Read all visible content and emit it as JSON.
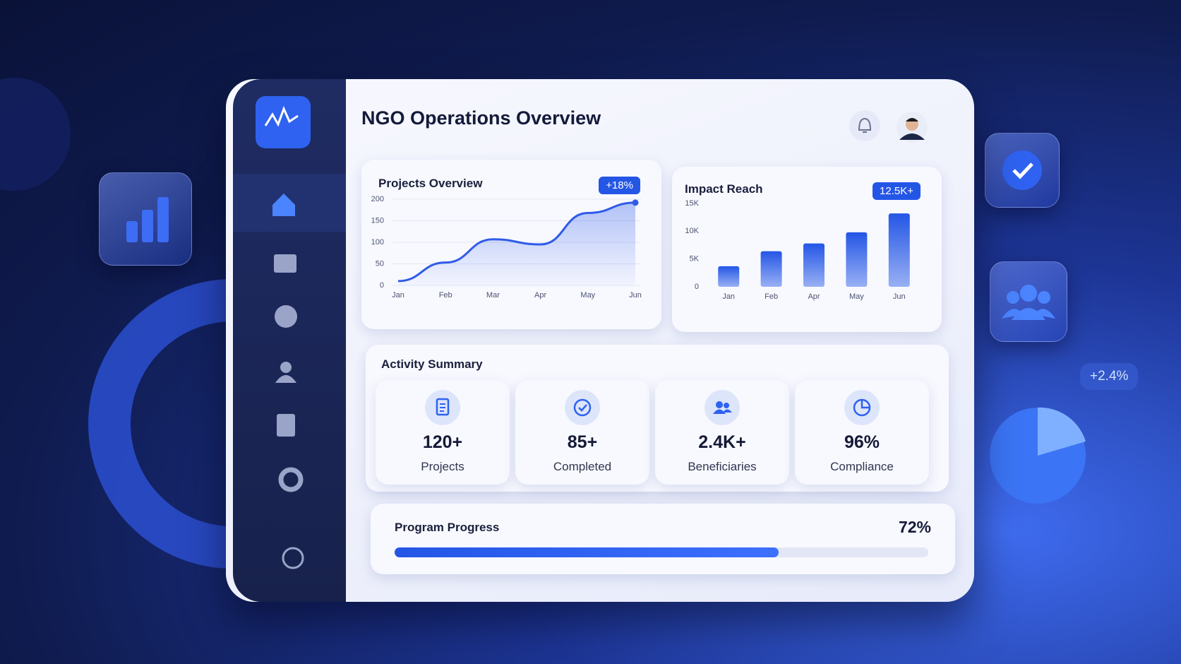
{
  "header": {
    "title": "NGO Operations Overview"
  },
  "chart_data": [
    {
      "type": "line",
      "title": "Projects Overview",
      "annotation": "+18%",
      "categories": [
        "Jan",
        "Feb",
        "Mar",
        "Apr",
        "May",
        "Jun"
      ],
      "values": [
        10,
        53,
        107,
        95,
        168,
        192
      ],
      "color": "#2f5be8",
      "ylim": [
        0,
        200
      ],
      "yticks": [
        0,
        50,
        100,
        150,
        200
      ],
      "grid": true
    },
    {
      "type": "bar",
      "title": "Impact Reach",
      "annotation": "12.5K+",
      "categories": [
        "Jan",
        "Feb",
        "Apr",
        "May",
        "Jun"
      ],
      "values": [
        3700,
        6400,
        7800,
        9800,
        13200
      ],
      "color": "#2456e6",
      "ylim": [
        0,
        15000
      ],
      "yticks": [
        0,
        {
          "value": 5000,
          "label": "5K"
        },
        {
          "value": 10000,
          "label": "10K"
        },
        {
          "value": 15000,
          "label": "15K"
        }
      ],
      "grid": false
    }
  ],
  "activity_summary": {
    "title": "Activity Summary",
    "stats": [
      {
        "value": "120+",
        "label": "Projects"
      },
      {
        "value": "85+",
        "label": "Completed"
      },
      {
        "value": "2.4K+",
        "label": "Beneficiaries"
      },
      {
        "value": "96%",
        "label": "Compliance"
      }
    ]
  },
  "program_progress": {
    "title": "Program Progress",
    "value": 72,
    "value_label": "72%"
  },
  "floating_badge": "+2.4%"
}
